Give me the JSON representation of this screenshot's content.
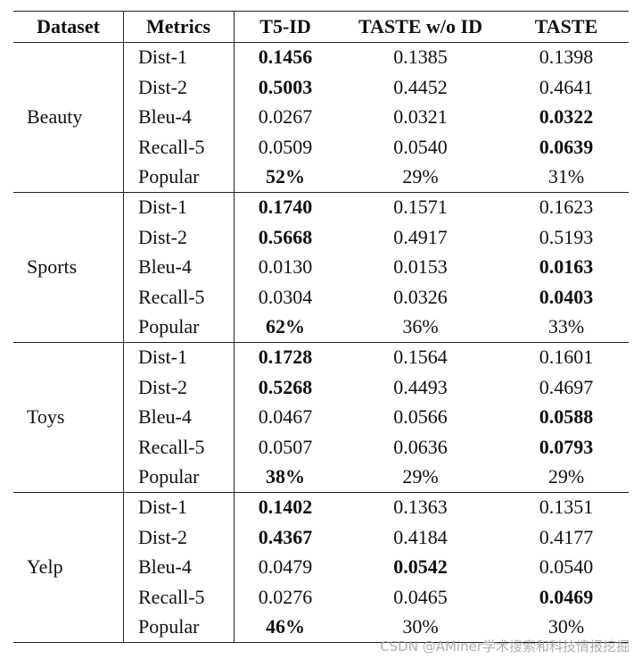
{
  "table": {
    "header": [
      "Dataset",
      "Metrics",
      "T5-ID",
      "TASTE w/o ID",
      "TASTE"
    ],
    "groups": [
      {
        "dataset": "Beauty",
        "rows": [
          {
            "cells": [
              "Dist-1",
              "0.1456",
              "0.1385",
              "0.1398"
            ],
            "bold": 1
          },
          {
            "cells": [
              "Dist-2",
              "0.5003",
              "0.4452",
              "0.4641"
            ],
            "bold": 1
          },
          {
            "cells": [
              "Bleu-4",
              "0.0267",
              "0.0321",
              "0.0322"
            ],
            "bold": 3
          },
          {
            "cells": [
              "Recall-5",
              "0.0509",
              "0.0540",
              "0.0639"
            ],
            "bold": 3
          },
          {
            "cells": [
              "Popular",
              "52%",
              "29%",
              "31%"
            ],
            "bold": 1
          }
        ]
      },
      {
        "dataset": "Sports",
        "rows": [
          {
            "cells": [
              "Dist-1",
              "0.1740",
              "0.1571",
              "0.1623"
            ],
            "bold": 1
          },
          {
            "cells": [
              "Dist-2",
              "0.5668",
              "0.4917",
              "0.5193"
            ],
            "bold": 1
          },
          {
            "cells": [
              "Bleu-4",
              "0.0130",
              "0.0153",
              "0.0163"
            ],
            "bold": 3
          },
          {
            "cells": [
              "Recall-5",
              "0.0304",
              "0.0326",
              "0.0403"
            ],
            "bold": 3
          },
          {
            "cells": [
              "Popular",
              "62%",
              "36%",
              "33%"
            ],
            "bold": 1
          }
        ]
      },
      {
        "dataset": "Toys",
        "rows": [
          {
            "cells": [
              "Dist-1",
              "0.1728",
              "0.1564",
              "0.1601"
            ],
            "bold": 1
          },
          {
            "cells": [
              "Dist-2",
              "0.5268",
              "0.4493",
              "0.4697"
            ],
            "bold": 1
          },
          {
            "cells": [
              "Bleu-4",
              "0.0467",
              "0.0566",
              "0.0588"
            ],
            "bold": 3
          },
          {
            "cells": [
              "Recall-5",
              "0.0507",
              "0.0636",
              "0.0793"
            ],
            "bold": 3
          },
          {
            "cells": [
              "Popular",
              "38%",
              "29%",
              "29%"
            ],
            "bold": 1
          }
        ]
      },
      {
        "dataset": "Yelp",
        "rows": [
          {
            "cells": [
              "Dist-1",
              "0.1402",
              "0.1363",
              "0.1351"
            ],
            "bold": 1
          },
          {
            "cells": [
              "Dist-2",
              "0.4367",
              "0.4184",
              "0.4177"
            ],
            "bold": 1
          },
          {
            "cells": [
              "Bleu-4",
              "0.0479",
              "0.0542",
              "0.0540"
            ],
            "bold": 2
          },
          {
            "cells": [
              "Recall-5",
              "0.0276",
              "0.0465",
              "0.0469"
            ],
            "bold": 3
          },
          {
            "cells": [
              "Popular",
              "46%",
              "30%",
              "30%"
            ],
            "bold": 1
          }
        ]
      }
    ]
  },
  "watermark": "CSDN @AMiner学术搜索和科技情报挖掘"
}
